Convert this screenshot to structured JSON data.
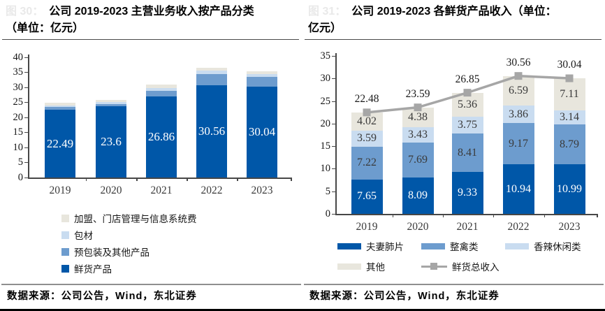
{
  "colors": {
    "bar_dark_blue": "#0057A8",
    "bar_medium_blue": "#6D9CCE",
    "bar_light_blue": "#C9DCF0",
    "bar_light_gray": "#E8E6DD",
    "line_gray": "#A6A6A6",
    "axis": "#474747",
    "faint_figure_label": "#e9e9e9"
  },
  "left_panel": {
    "fig_label": "图 30：",
    "title_line1": "公司 2019-2023 主营业务收入按产品分类",
    "title_line2": "（单位：亿元）",
    "source": "数据来源：公司公告，Wind，东北证券",
    "chart_data": {
      "type": "bar",
      "stacked": true,
      "title": "公司 2019-2023 主营业务收入按产品分类（单位：亿元）",
      "unit": "亿元",
      "categories": [
        "2019",
        "2020",
        "2021",
        "2022",
        "2023"
      ],
      "series": [
        {
          "name": "鲜货产品",
          "color": "#0057A8",
          "label_color": "#ffffff",
          "show_labels": true,
          "values": [
            22.49,
            23.6,
            26.86,
            30.56,
            30.04
          ]
        },
        {
          "name": "预包装及其他产品",
          "color": "#6D9CCE",
          "show_labels": false,
          "values": [
            0.9,
            0.8,
            1.8,
            3.8,
            3.3
          ],
          "estimated_from_pixels": true
        },
        {
          "name": "包材",
          "color": "#C9DCF0",
          "show_labels": false,
          "values": [
            0.6,
            0.7,
            1.1,
            1.1,
            1.0
          ],
          "estimated_from_pixels": true
        },
        {
          "name": "加盟、门店管理与信息系统费",
          "color": "#E8E6DD",
          "show_labels": false,
          "values": [
            0.75,
            0.75,
            1.0,
            1.0,
            0.95
          ],
          "estimated_from_pixels": true
        }
      ],
      "legend_order": [
        3,
        2,
        1,
        0
      ],
      "legend_position": "bottom-left-vertical",
      "ylim": [
        0,
        40
      ],
      "ytick_step": 5,
      "grid": false
    }
  },
  "right_panel": {
    "fig_label": "图 31：",
    "title_line1": "公司 2019-2023 各鲜货产品收入（单位：",
    "title_line2": "亿元）",
    "source": "数据来源：公司公告，Wind，东北证券",
    "chart_data": {
      "type": "bar+line",
      "stacked": true,
      "title": "公司 2019-2023 各鲜货产品收入（单位：亿元）",
      "unit": "亿元",
      "categories": [
        "2019",
        "2020",
        "2021",
        "2022",
        "2023"
      ],
      "series": [
        {
          "name": "夫妻肺片",
          "color": "#0057A8",
          "label_color": "#ffffff",
          "show_labels": true,
          "values": [
            7.65,
            8.09,
            9.33,
            10.94,
            10.99
          ]
        },
        {
          "name": "整禽类",
          "color": "#6D9CCE",
          "label_color": "#3a3a3a",
          "show_labels": true,
          "values": [
            7.22,
            7.69,
            8.41,
            9.17,
            8.79
          ]
        },
        {
          "name": "香辣休闲类",
          "color": "#C9DCF0",
          "label_color": "#3a3a3a",
          "show_labels": true,
          "values": [
            3.59,
            3.43,
            3.75,
            3.86,
            3.14
          ]
        },
        {
          "name": "其他",
          "color": "#E8E6DD",
          "label_color": "#3a3a3a",
          "show_labels": true,
          "values": [
            4.02,
            4.38,
            5.36,
            6.59,
            7.11
          ]
        }
      ],
      "line_series": {
        "name": "鲜货总收入",
        "color": "#A6A6A6",
        "marker": "square",
        "show_labels": true,
        "values": [
          22.48,
          23.59,
          26.85,
          30.56,
          30.04
        ]
      },
      "legend_position": "bottom-horizontal",
      "ylim": [
        0,
        35
      ],
      "ytick_step": 5,
      "grid": false
    }
  }
}
